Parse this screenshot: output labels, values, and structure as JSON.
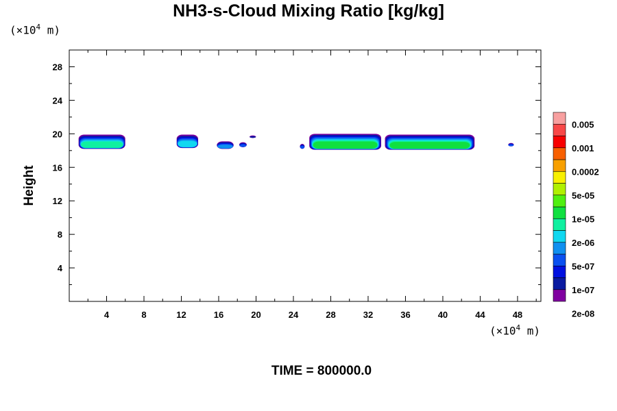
{
  "chart_data": {
    "type": "heatmap",
    "title": "NH3-s-Cloud Mixing Ratio [kg/kg]",
    "ylabel": "Height",
    "x_unit": {
      "prefix": "(×10",
      "exp": "4",
      "suffix": " m)"
    },
    "y_unit": {
      "prefix": "(×10",
      "exp": "4",
      "suffix": " m)"
    },
    "xlim": [
      0,
      50.5
    ],
    "ylim": [
      0,
      30
    ],
    "x_ticks": [
      4,
      8,
      12,
      16,
      20,
      24,
      28,
      32,
      36,
      40,
      44,
      48
    ],
    "y_ticks": [
      4,
      8,
      12,
      16,
      20,
      24,
      28
    ],
    "colorbar": {
      "labels": [
        "0.005",
        "0.001",
        "0.0002",
        "5e-05",
        "1e-05",
        "2e-06",
        "5e-07",
        "1e-07",
        "2e-08"
      ],
      "colors": [
        "#8000a0",
        "#0a1aa0",
        "#0010e0",
        "#0a50f0",
        "#1090f0",
        "#10d8f0",
        "#10f0a0",
        "#10e040",
        "#50f010",
        "#b0f000",
        "#f8f000",
        "#f8a000",
        "#f86000",
        "#f80000",
        "#f84848",
        "#f8a0a0"
      ]
    },
    "cloud_regions": [
      {
        "x_range": [
          1.0,
          6.0
        ],
        "y_bottom": 18.2,
        "y_top": 19.9,
        "max_level": 7
      },
      {
        "x_range": [
          11.5,
          13.8
        ],
        "y_bottom": 18.3,
        "y_top": 19.9,
        "max_level": 6
      },
      {
        "x_range": [
          15.8,
          17.6
        ],
        "y_bottom": 18.2,
        "y_top": 19.1,
        "max_level": 5
      },
      {
        "x_range": [
          18.2,
          19.0
        ],
        "y_bottom": 18.4,
        "y_top": 19.0,
        "max_level": 4
      },
      {
        "x_range": [
          19.3,
          20.0
        ],
        "y_bottom": 19.5,
        "y_top": 19.8,
        "max_level": 2
      },
      {
        "x_range": [
          24.7,
          25.2
        ],
        "y_bottom": 18.2,
        "y_top": 18.8,
        "max_level": 4
      },
      {
        "x_range": [
          25.7,
          33.4
        ],
        "y_bottom": 18.1,
        "y_top": 20.0,
        "max_level": 8
      },
      {
        "x_range": [
          33.8,
          43.4
        ],
        "y_bottom": 18.1,
        "y_top": 19.9,
        "max_level": 8
      },
      {
        "x_range": [
          47.0,
          47.6
        ],
        "y_bottom": 18.5,
        "y_top": 18.9,
        "max_level": 4
      }
    ],
    "time_label": "TIME = 800000.0"
  }
}
